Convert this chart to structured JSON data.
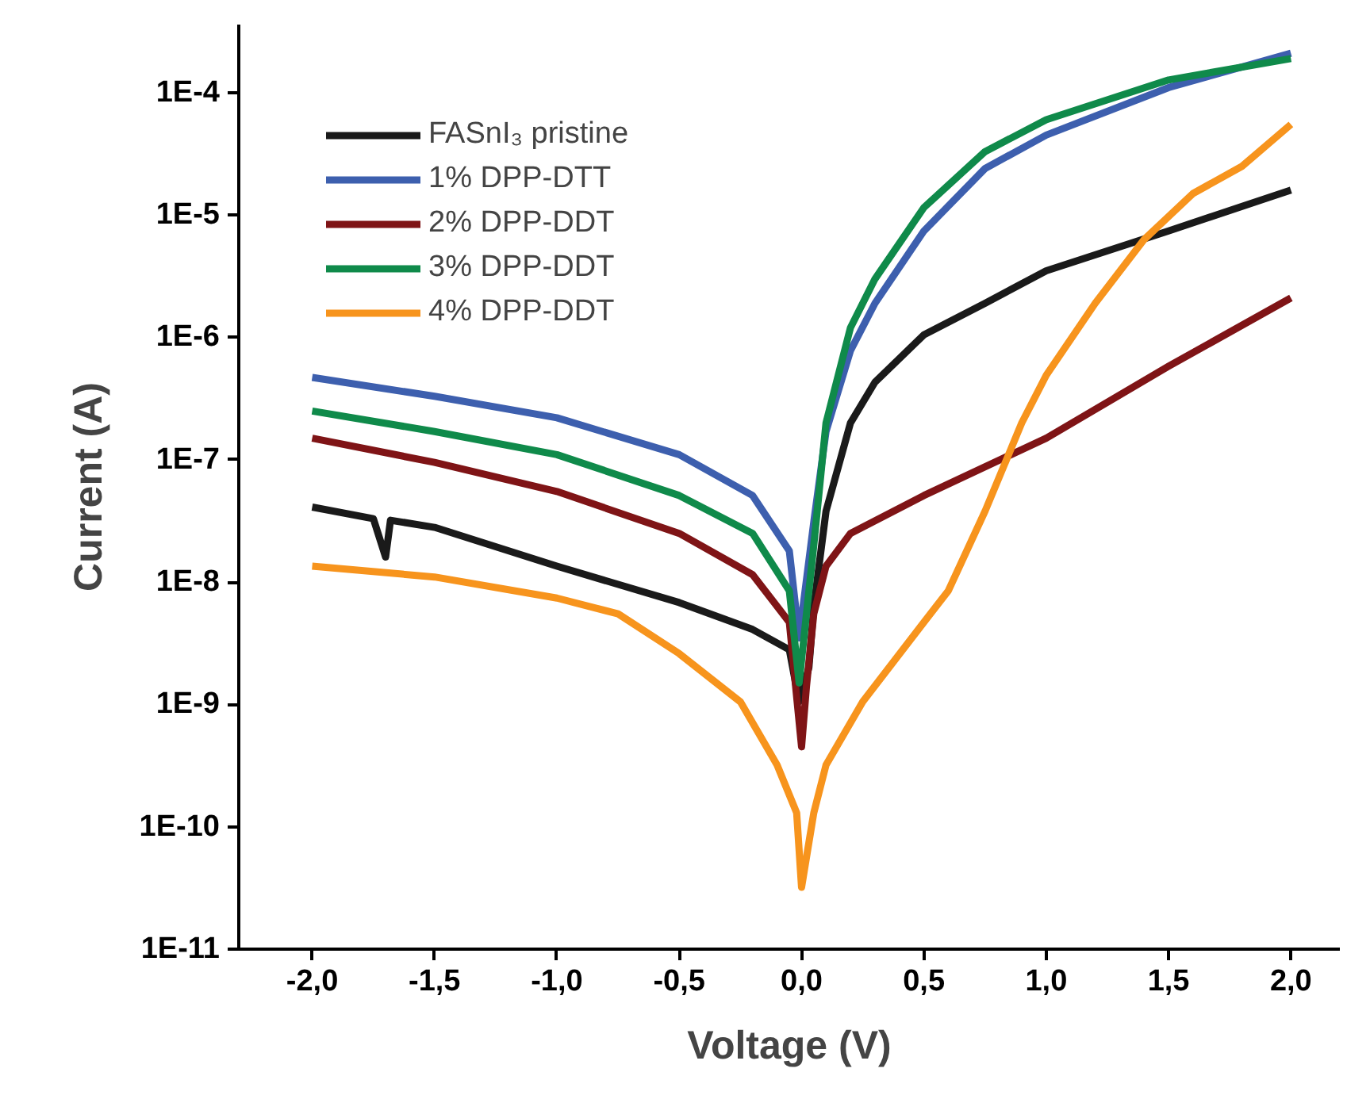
{
  "chart_data": {
    "type": "line",
    "xlabel": "Voltage (V)",
    "ylabel": "Current (A)",
    "log": "y",
    "grid": false,
    "legend": "top",
    "marker": "none",
    "line_style": "solid",
    "xlim": [
      -2.3,
      2.2
    ],
    "ylim": [
      1e-11,
      0.00036
    ],
    "xticks": [
      {
        "value": -2.0,
        "label": "-2,0"
      },
      {
        "value": -1.5,
        "label": "-1,5"
      },
      {
        "value": -1.0,
        "label": "-1,0"
      },
      {
        "value": -0.5,
        "label": "-0,5"
      },
      {
        "value": 0.0,
        "label": "0,0"
      },
      {
        "value": 0.5,
        "label": "0,5"
      },
      {
        "value": 1.0,
        "label": "1,0"
      },
      {
        "value": 1.5,
        "label": "1,5"
      },
      {
        "value": 2.0,
        "label": "2,0"
      }
    ],
    "yticks": [
      {
        "value": 1e-11,
        "label": "1E-11"
      },
      {
        "value": 1e-10,
        "label": "1E-10"
      },
      {
        "value": 1e-09,
        "label": "1E-9"
      },
      {
        "value": 1e-08,
        "label": "1E-8"
      },
      {
        "value": 1e-07,
        "label": "1E-7"
      },
      {
        "value": 1e-06,
        "label": "1E-6"
      },
      {
        "value": 1e-05,
        "label": "1E-5"
      },
      {
        "value": 0.0001,
        "label": "1E-4"
      }
    ],
    "series": [
      {
        "name": "FASnI₃ pristine",
        "color": "#1a1a1a",
        "x": [
          -2.0,
          -1.75,
          -1.7,
          -1.68,
          -1.5,
          -1.0,
          -0.5,
          -0.2,
          -0.05,
          -0.01,
          0.03,
          0.05,
          0.1,
          0.2,
          0.3,
          0.5,
          0.75,
          1.0,
          1.5,
          2.0
        ],
        "values": [
          4.1e-08,
          3.3e-08,
          1.6e-08,
          3.2e-08,
          2.8e-08,
          1.35e-08,
          6.8e-09,
          4.1e-09,
          2.8e-09,
          1.05e-09,
          2e-09,
          6.3e-09,
          3.8e-08,
          2e-07,
          4.3e-07,
          1.05e-06,
          1.9e-06,
          3.5e-06,
          7.4e-06,
          1.6e-05
        ]
      },
      {
        "name": "1% DPP-DTT",
        "color": "#3d5fae",
        "x": [
          -2.0,
          -1.5,
          -1.0,
          -0.5,
          -0.2,
          -0.05,
          -0.01,
          0.05,
          0.1,
          0.2,
          0.3,
          0.5,
          0.75,
          1.0,
          1.5,
          2.0
        ],
        "values": [
          4.7e-07,
          3.3e-07,
          2.2e-07,
          1.1e-07,
          5.1e-08,
          1.8e-08,
          3.5e-09,
          3.1e-08,
          1.7e-07,
          7.8e-07,
          1.9e-06,
          7.4e-06,
          2.4e-05,
          4.5e-05,
          0.00011,
          0.00021
        ]
      },
      {
        "name": "2% DPP-DDT",
        "color": "#7f1416",
        "x": [
          -2.0,
          -1.5,
          -1.0,
          -0.5,
          -0.2,
          -0.05,
          0.0,
          0.02,
          0.05,
          0.1,
          0.2,
          0.5,
          1.0,
          1.5,
          2.0
        ],
        "values": [
          1.5e-07,
          9.5e-08,
          5.5e-08,
          2.5e-08,
          1.15e-08,
          4.7e-09,
          4.5e-10,
          1.4e-09,
          5.5e-09,
          1.35e-08,
          2.5e-08,
          5.1e-08,
          1.5e-07,
          5.8e-07,
          2.1e-06
        ]
      },
      {
        "name": "3% DPP-DDT",
        "color": "#0f8a4a",
        "x": [
          -2.0,
          -1.5,
          -1.0,
          -0.5,
          -0.2,
          -0.05,
          -0.01,
          0.05,
          0.1,
          0.2,
          0.3,
          0.5,
          0.75,
          1.0,
          1.5,
          2.0
        ],
        "values": [
          2.5e-07,
          1.7e-07,
          1.1e-07,
          5.1e-08,
          2.5e-08,
          8.5e-09,
          1.5e-09,
          2e-08,
          2e-07,
          1.2e-06,
          3e-06,
          1.15e-05,
          3.3e-05,
          6e-05,
          0.000127,
          0.00019
        ]
      },
      {
        "name": "4% DPP-DDT",
        "color": "#f7941d",
        "x": [
          -2.0,
          -1.5,
          -1.0,
          -0.75,
          -0.5,
          -0.25,
          -0.1,
          -0.02,
          0.0,
          0.05,
          0.1,
          0.25,
          0.5,
          0.6,
          0.75,
          0.9,
          1.0,
          1.2,
          1.4,
          1.6,
          1.8,
          2.0
        ],
        "values": [
          1.35e-08,
          1.1e-08,
          7.4e-09,
          5.5e-09,
          2.6e-09,
          1.05e-09,
          3.2e-10,
          1.3e-10,
          3.2e-11,
          1.3e-10,
          3.2e-10,
          1.05e-09,
          4.7e-09,
          8.5e-09,
          3.8e-08,
          2e-07,
          4.9e-07,
          1.9e-06,
          6.3e-06,
          1.5e-05,
          2.5e-05,
          5.5e-05
        ]
      }
    ]
  }
}
